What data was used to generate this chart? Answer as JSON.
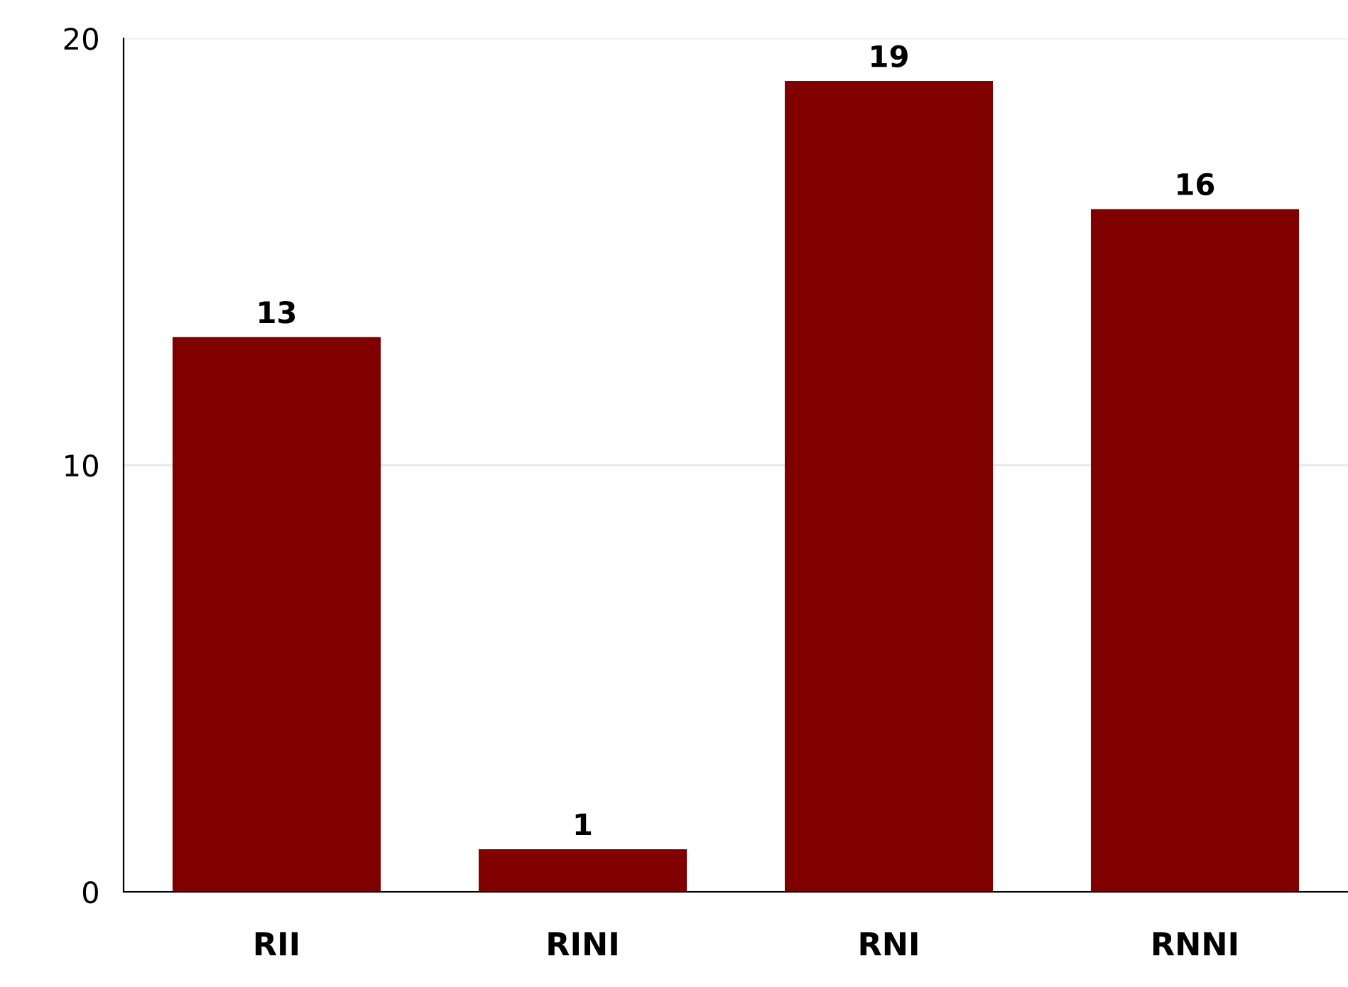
{
  "chart_data": {
    "type": "bar",
    "categories": [
      "RII",
      "RINI",
      "RNI",
      "RNNI"
    ],
    "values": [
      13,
      1,
      19,
      16
    ],
    "color": "#800000",
    "ylim": [
      0,
      20
    ],
    "yticks": [
      0,
      10,
      20
    ],
    "grid": "y",
    "data_labels": true
  }
}
